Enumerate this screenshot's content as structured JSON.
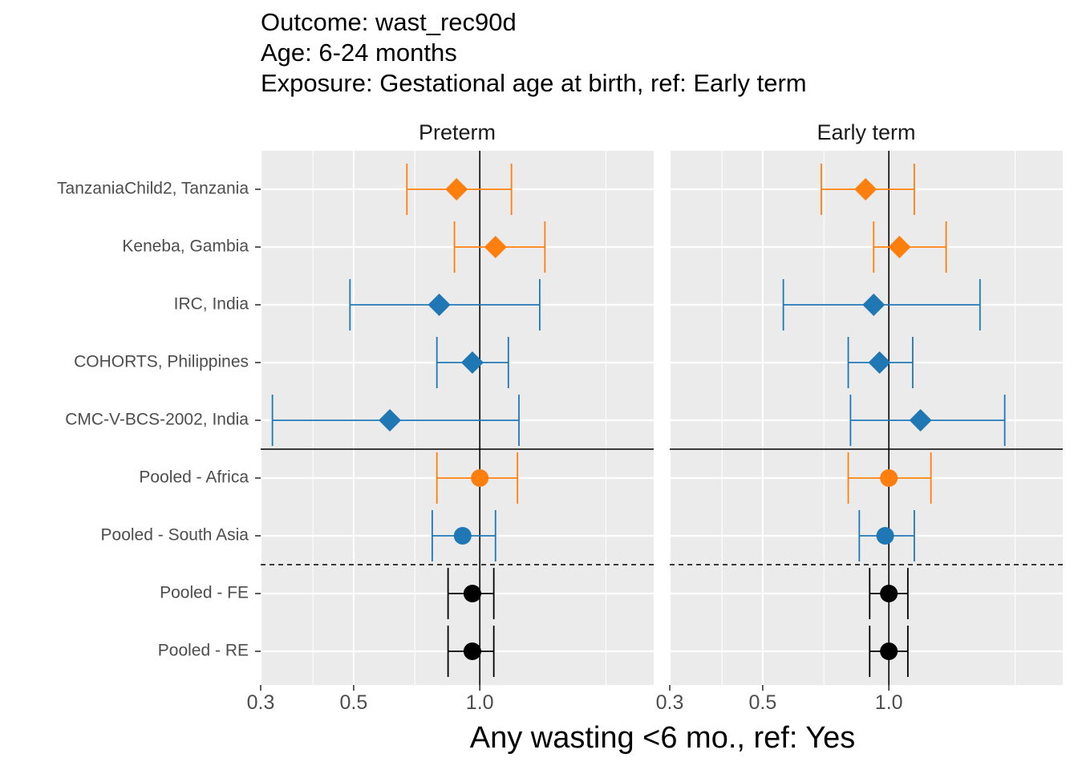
{
  "title_lines": [
    "Outcome: wast_rec90d",
    "Age: 6-24 months",
    "Exposure: Gestational age at birth, ref: Early term"
  ],
  "chart_data": {
    "type": "forest",
    "xlabel": "Any wasting  <6 mo., ref: Yes",
    "x_scale": "log",
    "xlim": [
      0.3,
      2.6
    ],
    "x_ticks": [
      0.3,
      0.5,
      1.0
    ],
    "x_tick_labels": [
      "0.3",
      "0.5",
      "1.0"
    ],
    "reference_line": 1.0,
    "grid": true,
    "rows": [
      "TanzaniaChild2, Tanzania",
      "Keneba, Gambia",
      "IRC, India",
      "COHORTS, Philippines",
      "CMC-V-BCS-2002, India",
      "Pooled - Africa",
      "Pooled - South Asia",
      "Pooled - FE",
      "Pooled - RE"
    ],
    "row_marker": [
      "diamond",
      "diamond",
      "diamond",
      "diamond",
      "diamond",
      "circle",
      "circle",
      "circle",
      "circle"
    ],
    "row_color": [
      "africa",
      "africa",
      "asia",
      "asia",
      "asia",
      "africa",
      "asia",
      "overall",
      "overall"
    ],
    "colors": {
      "africa": "#FF7F0E",
      "asia": "#1F77B4",
      "overall": "#000000"
    },
    "panels": [
      {
        "name": "Preterm",
        "estimates": [
          0.88,
          1.09,
          0.8,
          0.96,
          0.61,
          1.0,
          0.91,
          0.96,
          0.96
        ],
        "lower": [
          0.67,
          0.87,
          0.49,
          0.79,
          0.32,
          0.79,
          0.77,
          0.84,
          0.84
        ],
        "upper": [
          1.19,
          1.43,
          1.39,
          1.17,
          1.24,
          1.23,
          1.09,
          1.08,
          1.08
        ]
      },
      {
        "name": "Early term",
        "estimates": [
          0.88,
          1.06,
          0.92,
          0.95,
          1.19,
          1.0,
          0.98,
          1.0,
          1.0
        ],
        "lower": [
          0.69,
          0.92,
          0.56,
          0.8,
          0.81,
          0.8,
          0.85,
          0.9,
          0.9
        ],
        "upper": [
          1.15,
          1.37,
          1.65,
          1.14,
          1.89,
          1.26,
          1.15,
          1.11,
          1.11
        ]
      }
    ]
  }
}
